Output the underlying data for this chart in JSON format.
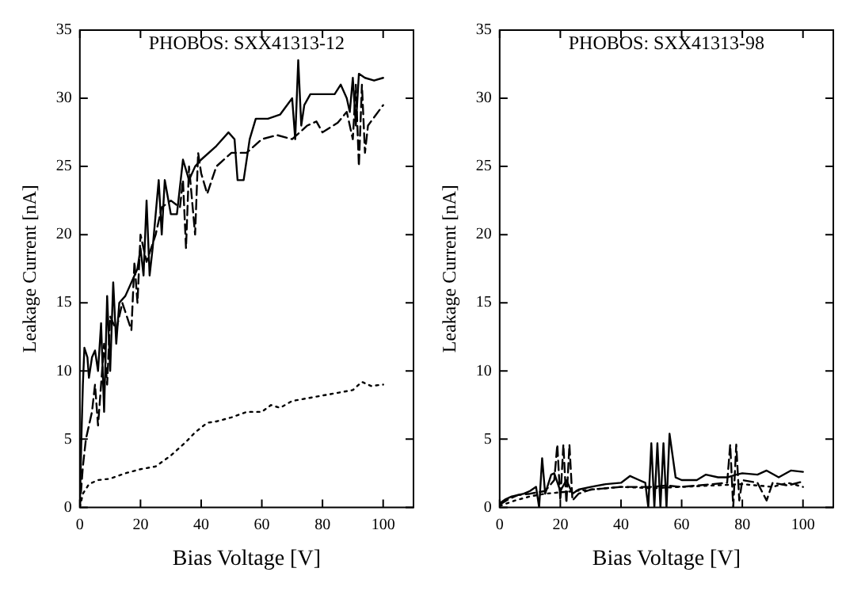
{
  "chart_data": [
    {
      "type": "line",
      "title": "PHOBOS: SXX41313-12",
      "xlabel": "Bias Voltage [V]",
      "ylabel": "Leakage Current [nA]",
      "xlim": [
        0,
        110
      ],
      "xticks": [
        0,
        20,
        40,
        60,
        80,
        100
      ],
      "ylim": [
        0,
        35
      ],
      "yticks": [
        0,
        5,
        10,
        15,
        20,
        25,
        30,
        35
      ],
      "grid": false,
      "legend": false,
      "series": [
        {
          "color": "#000000",
          "line_style": "solid",
          "x": [
            0,
            0.5,
            1,
            1.5,
            2.5,
            3,
            4,
            5,
            6,
            7,
            8,
            9,
            10,
            11,
            12,
            13,
            15,
            17,
            19,
            20,
            21,
            22,
            23,
            24,
            26,
            27,
            28,
            30,
            32,
            34,
            36,
            38,
            40,
            45,
            49,
            51,
            52,
            54,
            56,
            58,
            62,
            66,
            70,
            71,
            72,
            73,
            74,
            76,
            80,
            84,
            86,
            88,
            89,
            90,
            91,
            92,
            94,
            97,
            100
          ],
          "values": [
            0,
            5,
            9,
            11.7,
            11,
            9.5,
            11,
            11.5,
            10,
            13.5,
            7,
            15.5,
            10,
            16.5,
            12,
            15,
            15.5,
            16.5,
            17.5,
            19,
            17,
            22.5,
            17,
            19,
            24,
            20,
            24,
            21.5,
            21.5,
            25.5,
            24,
            25,
            25.5,
            26.5,
            27.5,
            27,
            24,
            24,
            27,
            28.5,
            28.5,
            28.8,
            30,
            27,
            32.8,
            28,
            29.5,
            30.3,
            30.3,
            30.3,
            31,
            30,
            29,
            31.5,
            28,
            31.8,
            31.5,
            31.3,
            31.5
          ]
        },
        {
          "color": "#000000",
          "line_style": "dashed",
          "x": [
            0,
            1,
            2,
            4,
            5,
            6,
            7,
            8,
            9,
            10,
            12,
            14,
            17,
            18,
            19,
            20,
            22,
            25,
            27,
            30,
            33,
            34,
            35,
            36,
            38,
            39,
            40,
            42,
            45,
            50,
            55,
            60,
            65,
            70,
            75,
            78,
            80,
            85,
            88,
            90,
            91,
            92,
            93,
            94,
            95,
            100
          ],
          "values": [
            0,
            3,
            5,
            7,
            9,
            6,
            9,
            12,
            9,
            14,
            13,
            15,
            13,
            18,
            15,
            20,
            18,
            20,
            22,
            22.5,
            22,
            24,
            19,
            25,
            20,
            26,
            24.5,
            23,
            25,
            26,
            26,
            27,
            27.3,
            27,
            28,
            28.3,
            27.5,
            28.2,
            29,
            27,
            31,
            25,
            31,
            26,
            28,
            29.5
          ]
        },
        {
          "color": "#000000",
          "line_style": "dotted",
          "x": [
            0,
            1,
            3,
            6,
            10,
            15,
            20,
            25,
            30,
            35,
            38,
            42,
            45,
            50,
            55,
            60,
            63,
            66,
            70,
            75,
            80,
            85,
            90,
            93,
            96,
            100
          ],
          "values": [
            0,
            1,
            1.7,
            2,
            2.1,
            2.5,
            2.8,
            3,
            3.8,
            4.8,
            5.5,
            6.2,
            6.3,
            6.6,
            7,
            7,
            7.5,
            7.3,
            7.8,
            8,
            8.2,
            8.4,
            8.6,
            9.2,
            8.9,
            9
          ]
        }
      ]
    },
    {
      "type": "line",
      "title": "PHOBOS: SXX41313-98",
      "xlabel": "Bias Voltage [V]",
      "ylabel": "Leakage Current [nA]",
      "xlim": [
        0,
        110
      ],
      "xticks": [
        0,
        20,
        40,
        60,
        80,
        100
      ],
      "ylim": [
        0,
        35
      ],
      "yticks": [
        0,
        5,
        10,
        15,
        20,
        25,
        30,
        35
      ],
      "grid": false,
      "legend": false,
      "series": [
        {
          "color": "#000000",
          "line_style": "solid",
          "x": [
            0,
            2,
            4,
            6,
            8,
            10,
            12,
            13,
            14,
            15,
            17,
            18,
            20,
            22,
            24,
            26,
            30,
            35,
            40,
            43,
            46,
            48,
            49,
            50,
            51,
            52,
            53,
            54,
            55,
            56,
            58,
            60,
            65,
            68,
            72,
            75,
            78,
            80,
            85,
            88,
            92,
            96,
            100
          ],
          "values": [
            0.3,
            0.6,
            0.8,
            0.9,
            1,
            1.2,
            1.5,
            0,
            3.6,
            1,
            2.4,
            2.5,
            1.2,
            2,
            1,
            1.3,
            1.5,
            1.7,
            1.8,
            2.3,
            2,
            1.8,
            0,
            4.7,
            0,
            4.7,
            0,
            4.7,
            0,
            5.4,
            2.2,
            2,
            2,
            2.4,
            2.2,
            2.2,
            2.4,
            2.5,
            2.4,
            2.7,
            2.2,
            2.7,
            2.6
          ]
        },
        {
          "color": "#000000",
          "line_style": "dashed",
          "x": [
            0,
            3,
            6,
            10,
            15,
            18,
            19,
            20,
            21,
            22,
            23,
            24,
            26,
            30,
            40,
            50,
            55,
            60,
            70,
            75,
            76,
            77,
            78,
            79,
            80,
            85,
            88,
            90,
            95,
            100
          ],
          "values": [
            0.2,
            0.6,
            0.9,
            1,
            1.2,
            2,
            4.6,
            0.5,
            4.6,
            0.3,
            4.6,
            0.5,
            1,
            1.3,
            1.5,
            1.5,
            1.6,
            1.5,
            1.7,
            1.8,
            4.6,
            0,
            4.6,
            0.5,
            2,
            1.8,
            0.5,
            1.8,
            1.6,
            1.9
          ]
        },
        {
          "color": "#000000",
          "line_style": "dotted",
          "x": [
            0,
            5,
            10,
            15,
            20,
            25,
            30,
            40,
            50,
            60,
            70,
            80,
            90,
            95,
            100
          ],
          "values": [
            0.1,
            0.5,
            0.8,
            1,
            1.1,
            1.2,
            1.3,
            1.5,
            1.4,
            1.5,
            1.6,
            1.7,
            1.5,
            1.8,
            1.5
          ]
        }
      ]
    }
  ]
}
